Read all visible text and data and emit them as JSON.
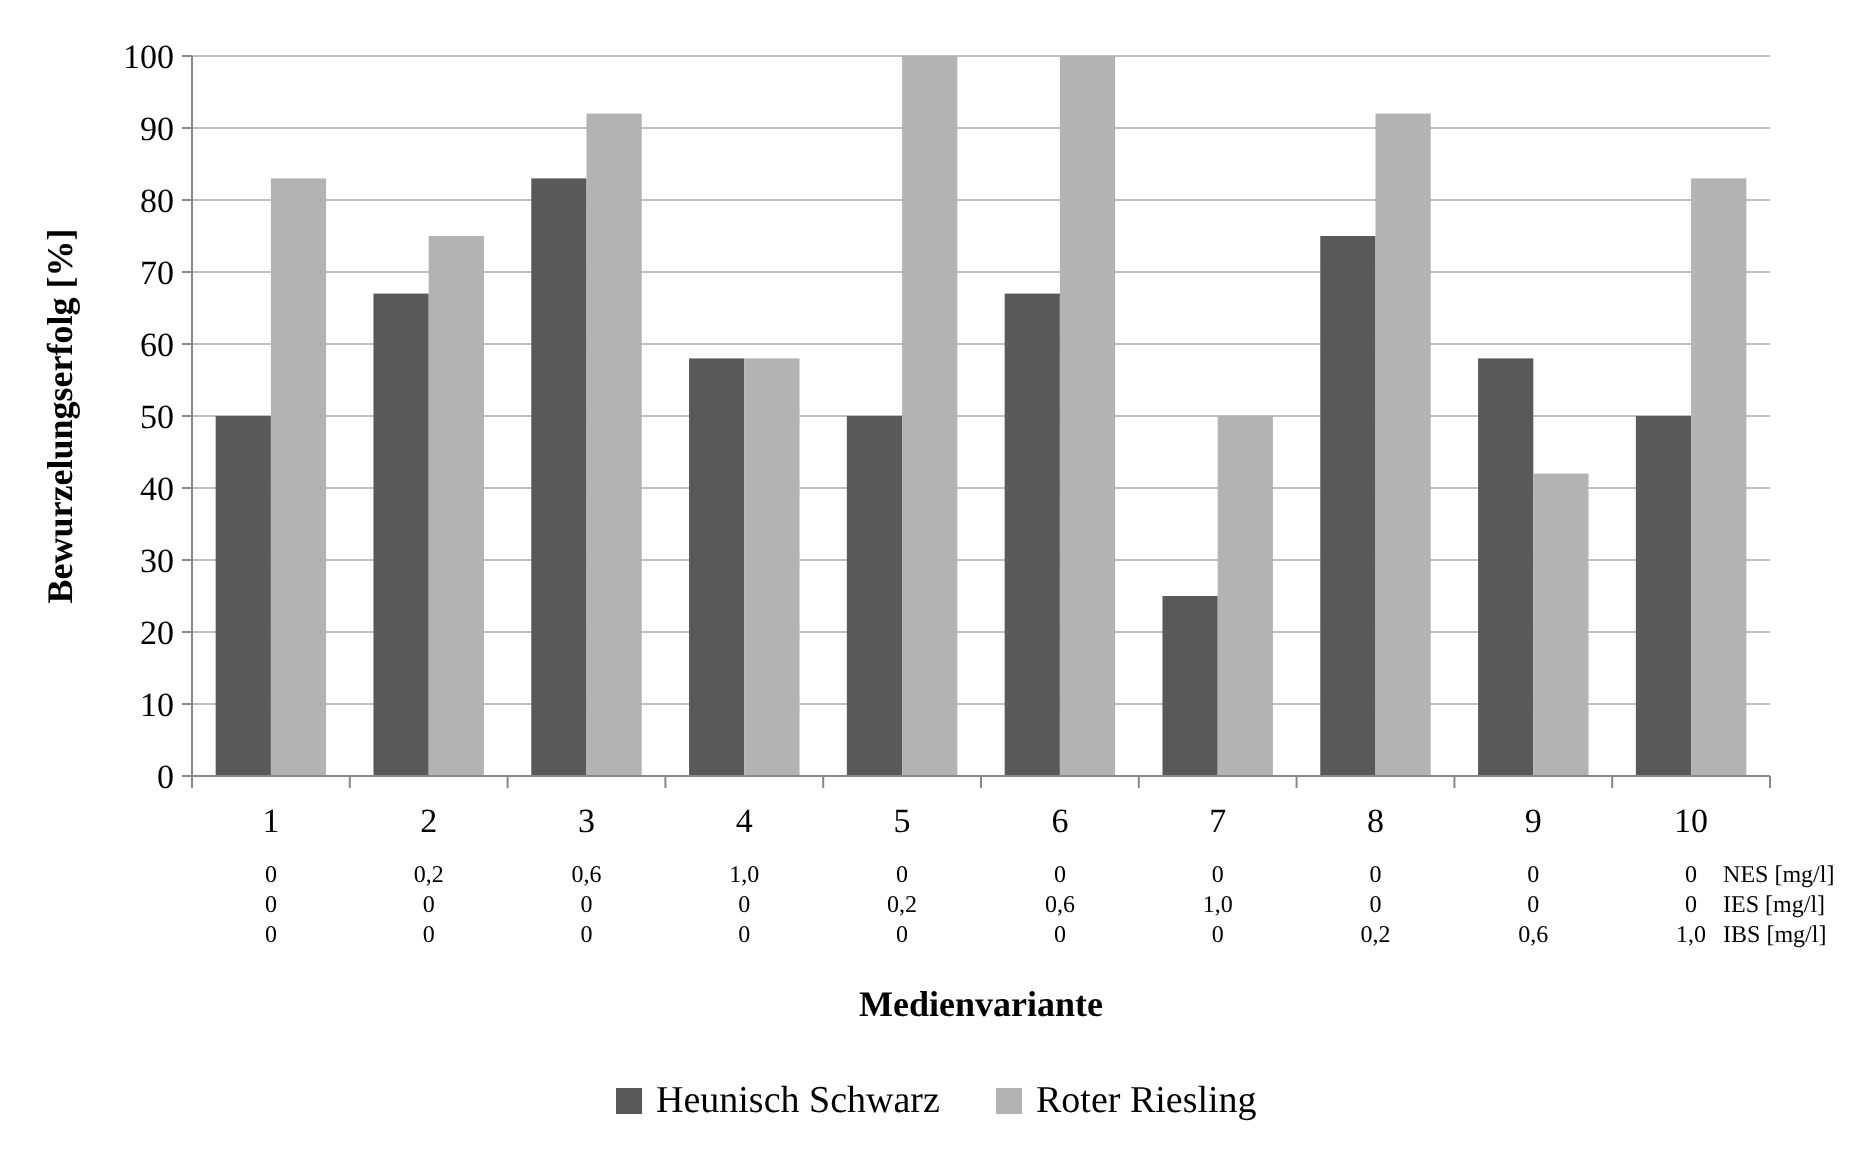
{
  "chart_data": {
    "type": "bar",
    "xlabel": "Medienvariante",
    "ylabel": "Bewurzelungserfolg [%]",
    "categories": [
      "1\n0\n0\n0",
      "2\n0,2\n0\n0",
      "3\n0,6\n0\n0",
      "4\n1,0\n0\n0",
      "5\n0\n0,2\n0",
      "6\n0\n0,6\n0",
      "7\n0\n1,0\n0",
      "8\n0\n0\n0,2",
      "9\n0\n0\n0,6",
      "10\n0\n0\n1,0"
    ],
    "series": [
      {
        "name": "Heunisch Schwarz",
        "color": "#595959",
        "values": [
          50,
          67,
          83,
          58,
          50,
          67,
          25,
          75,
          58,
          50
        ]
      },
      {
        "name": "Roter Riesling",
        "color": "#b3b3b3",
        "values": [
          83,
          75,
          92,
          58,
          100,
          100,
          50,
          92,
          42,
          83
        ]
      }
    ],
    "ylim": [
      0,
      100
    ],
    "yticks": [
      0,
      10,
      20,
      30,
      40,
      50,
      60,
      70,
      80,
      90,
      100
    ],
    "grid": "y",
    "legend": "bottom",
    "annotations": [
      "NES [mg/l]",
      "IES [mg/l]",
      "IBS [mg/l]"
    ]
  }
}
